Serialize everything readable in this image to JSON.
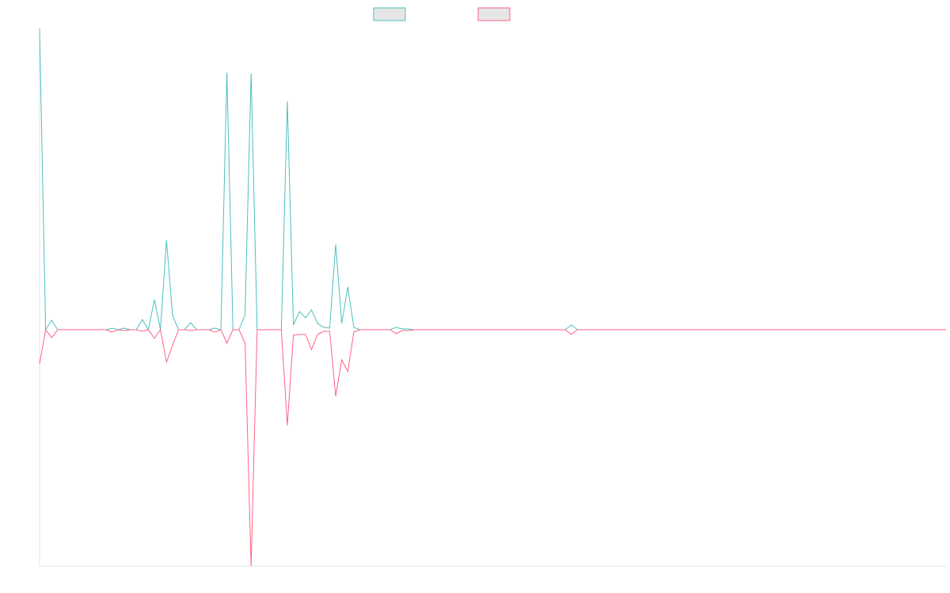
{
  "chart_data": {
    "type": "line",
    "ylim": [
      -299,
      381
    ],
    "legend": "top",
    "series": [
      {
        "color": "#4bc0c0",
        "values": [
          381,
          0,
          12,
          0,
          0,
          0,
          0,
          0,
          0,
          0,
          0,
          0,
          2,
          0,
          2,
          0,
          0,
          13,
          0,
          38,
          0,
          113,
          18,
          0,
          0,
          9,
          0,
          0,
          0,
          2,
          0,
          325,
          0,
          0,
          19,
          324,
          0,
          0,
          0,
          0,
          0,
          289,
          6,
          23,
          15,
          25,
          8,
          3,
          2,
          108,
          8,
          54,
          3,
          0,
          0,
          0,
          0,
          0,
          0,
          3,
          1,
          1,
          0,
          0,
          0,
          0,
          0,
          0,
          0,
          0,
          0,
          0,
          0,
          0,
          0,
          0,
          0,
          0,
          0,
          0,
          0,
          0,
          0,
          0,
          0,
          0,
          0,
          0,
          6,
          0,
          0,
          0,
          0,
          0,
          0,
          0,
          0,
          0,
          0,
          0,
          0,
          0,
          0,
          0,
          0,
          0,
          0,
          0,
          0,
          0,
          0,
          0,
          0,
          0,
          0,
          0,
          0,
          0,
          0,
          0,
          0,
          0,
          0,
          0,
          0,
          0,
          0,
          0,
          0,
          0,
          0,
          0,
          0,
          0,
          0,
          0,
          0,
          0,
          0,
          0,
          0,
          0,
          0,
          0,
          0,
          0,
          0,
          0,
          0,
          0,
          0
        ]
      },
      {
        "color": "#ff6384",
        "values": [
          -43,
          0,
          -10,
          0,
          0,
          0,
          0,
          0,
          0,
          0,
          0,
          0,
          -3,
          0,
          -1,
          0,
          0,
          -2,
          0,
          -11,
          0,
          -41,
          -20,
          0,
          0,
          -1,
          0,
          0,
          0,
          -3,
          0,
          -17,
          0,
          0,
          -17,
          -299,
          0,
          0,
          0,
          0,
          0,
          -121,
          -7,
          -6,
          -6,
          -25,
          -6,
          -2,
          -2,
          -84,
          -38,
          -53,
          -3,
          0,
          0,
          0,
          0,
          0,
          0,
          -5,
          -1,
          -1,
          0,
          0,
          0,
          0,
          0,
          0,
          0,
          0,
          0,
          0,
          0,
          0,
          0,
          0,
          0,
          0,
          0,
          0,
          0,
          0,
          0,
          0,
          0,
          0,
          0,
          0,
          -6,
          0,
          0,
          0,
          0,
          0,
          0,
          0,
          0,
          0,
          0,
          0,
          0,
          0,
          0,
          0,
          0,
          0,
          0,
          0,
          0,
          0,
          0,
          0,
          0,
          0,
          0,
          0,
          0,
          0,
          0,
          0,
          0,
          0,
          0,
          0,
          0,
          0,
          0,
          0,
          0,
          0,
          0,
          0,
          0,
          0,
          0,
          0,
          0,
          0,
          0,
          0,
          0,
          0,
          0,
          0,
          0,
          0,
          0,
          0,
          0,
          0,
          0
        ]
      }
    ]
  }
}
